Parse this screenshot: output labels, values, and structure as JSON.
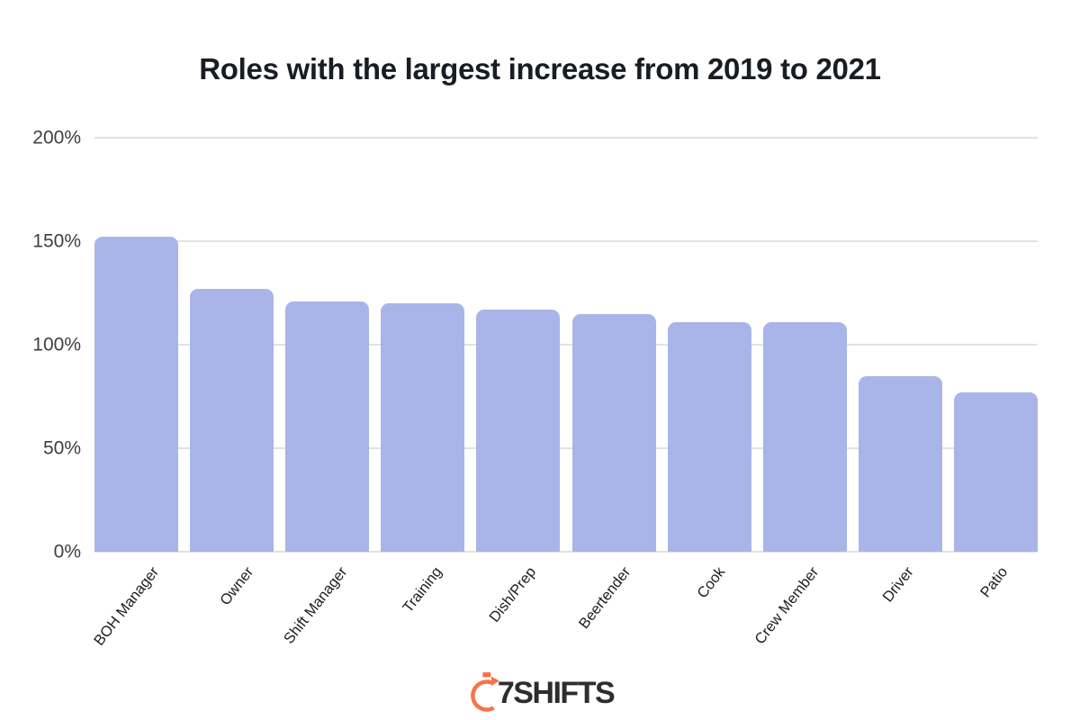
{
  "page": {
    "background_color": "#ffffff"
  },
  "chart_data": {
    "type": "bar",
    "title": "Roles with the largest increase from 2019 to 2021",
    "categories": [
      "BOH Manager",
      "Owner",
      "Shift Manager",
      "Training",
      "Dish/Prep",
      "Beertender",
      "Cook",
      "Crew Member",
      "Driver",
      "Patio"
    ],
    "values": [
      152,
      127,
      121,
      120,
      117,
      115,
      111,
      111,
      85,
      77
    ],
    "unit": "%",
    "xlabel": "",
    "ylabel": "",
    "ylim": [
      0,
      200
    ],
    "ytick_labels": [
      "200%",
      "150%",
      "100%",
      "50%",
      "0%"
    ],
    "ytick_values": [
      200,
      150,
      100,
      50,
      0
    ],
    "grid": "horizontal",
    "legend": "none",
    "bar_color": "#a9b5e8",
    "gridline_color": "#e2e2e2",
    "title_color": "#191d23",
    "ytick_color": "#3f3f3f",
    "category_label_color": "#1d1d1d"
  },
  "footer": {
    "logo_text": "7SHIFTS",
    "logo_icon": "stopwatch-arc-icon",
    "logo_accent_color": "#f5744d",
    "logo_text_color": "#2d2d2d"
  }
}
